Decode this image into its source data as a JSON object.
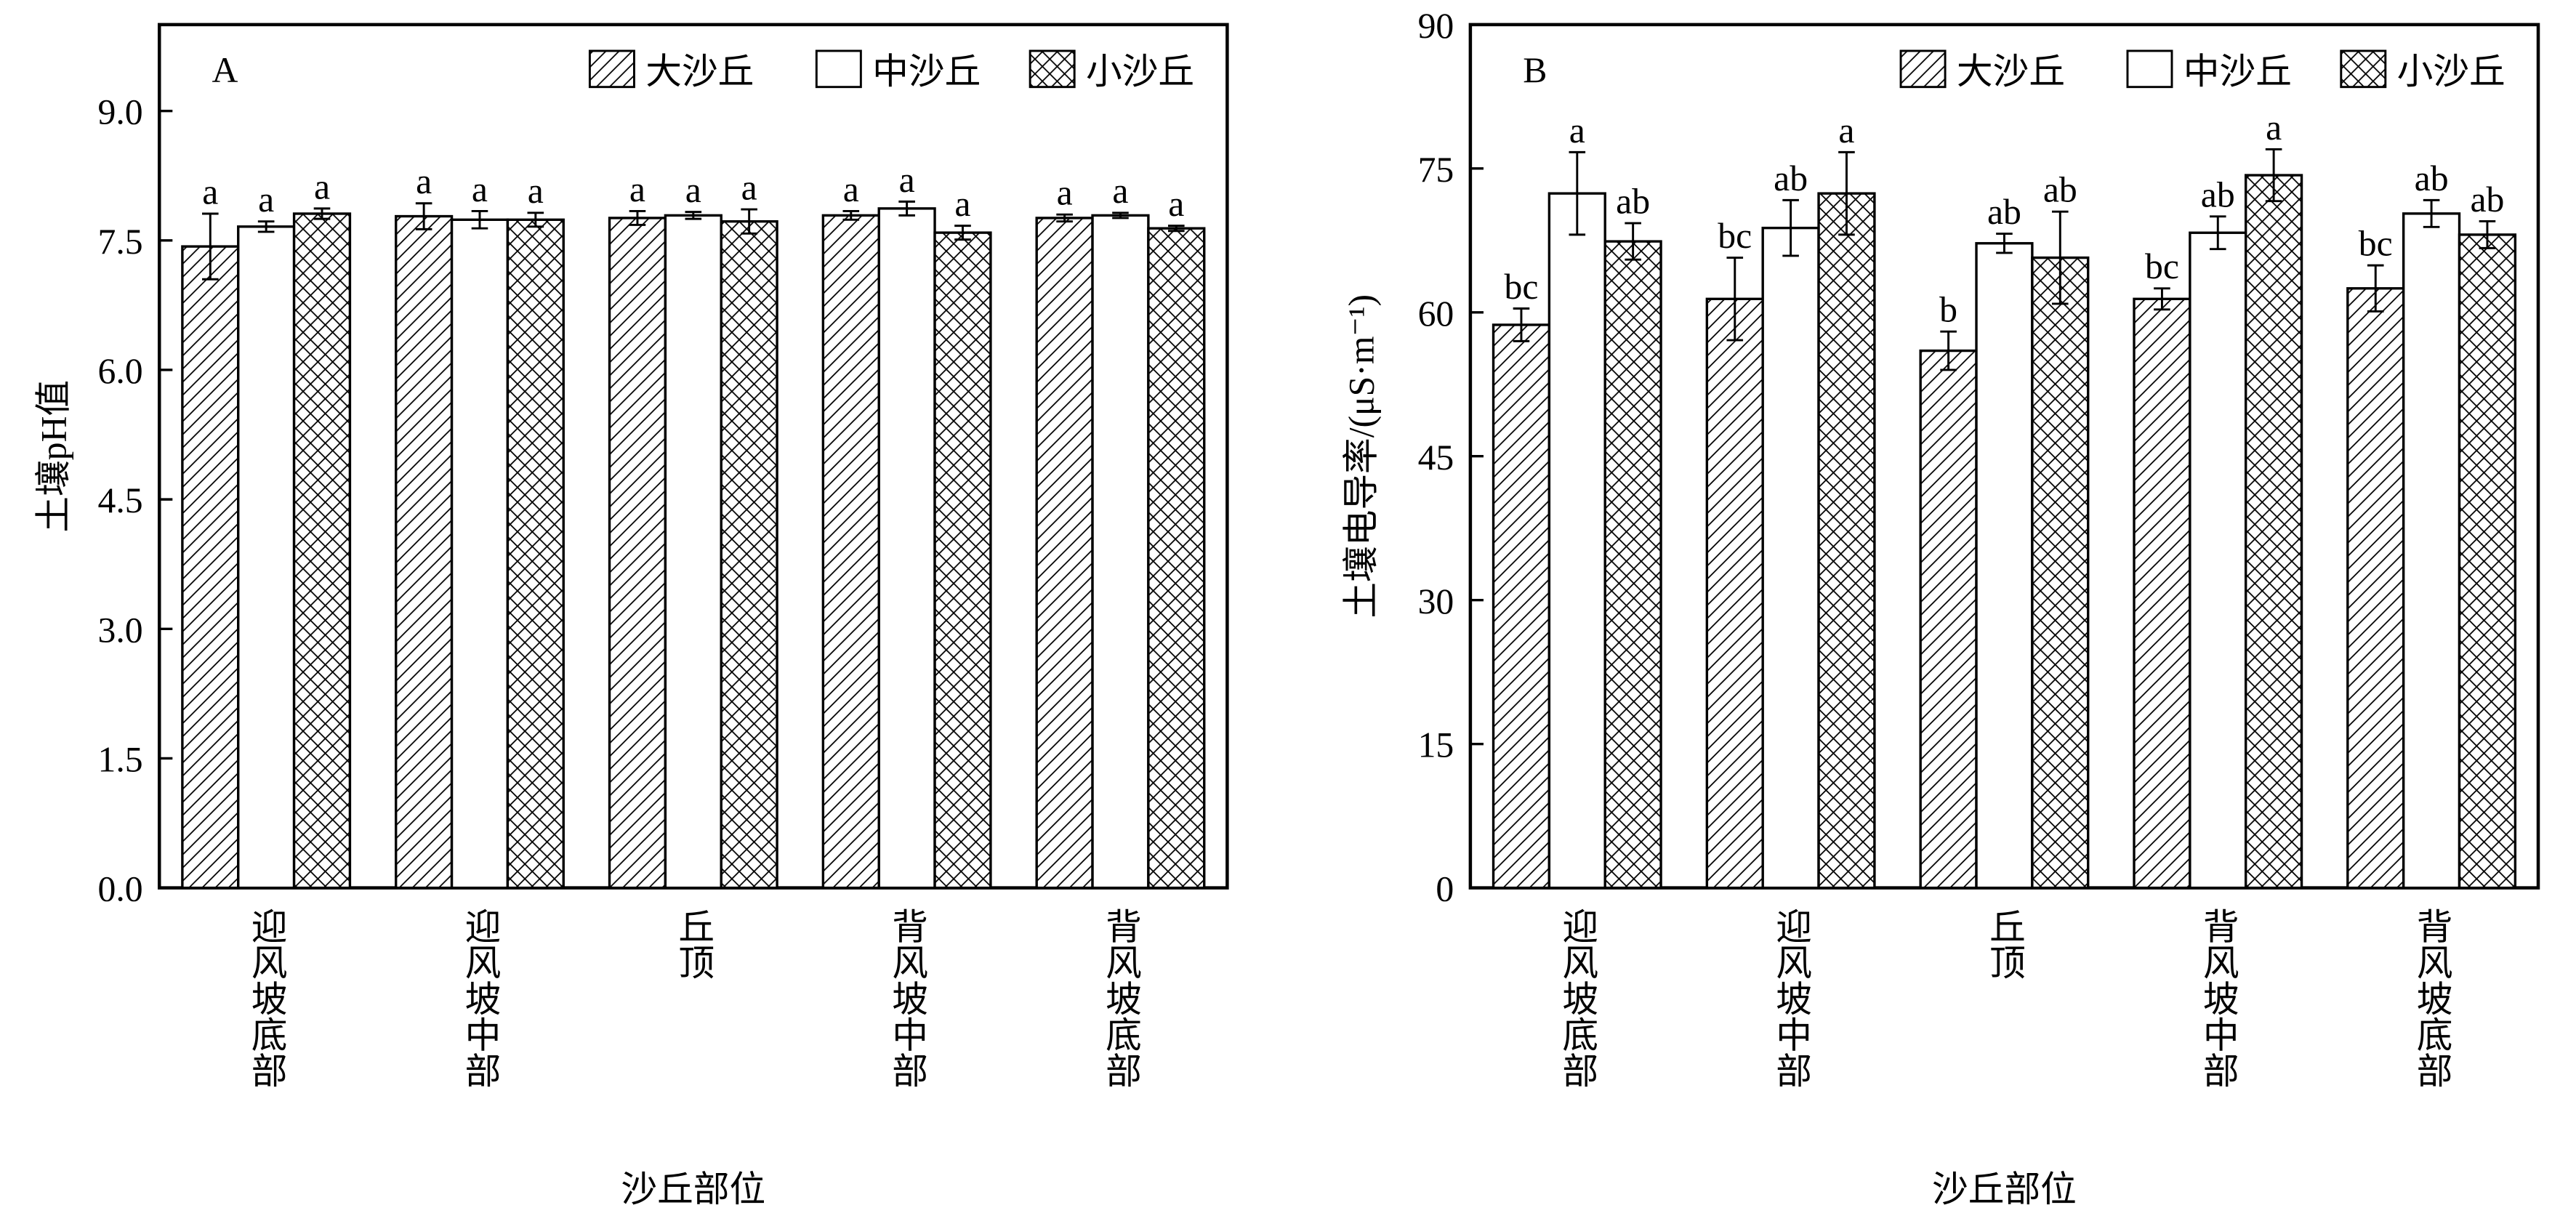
{
  "chart_data": [
    {
      "type": "bar",
      "panel": "A",
      "y_label": "土壤pH值",
      "x_label": "沙丘部位",
      "categories": [
        "迎风坡底部",
        "迎风坡中部",
        "丘顶",
        "背风坡中部",
        "背风坡底部"
      ],
      "ylim": [
        0,
        10
      ],
      "yticks": [
        {
          "value": 0,
          "label": "0.0"
        },
        {
          "value": 1.5,
          "label": "1.5"
        },
        {
          "value": 3,
          "label": "3.0"
        },
        {
          "value": 4.5,
          "label": "4.5"
        },
        {
          "value": 6,
          "label": "6.0"
        },
        {
          "value": 7.5,
          "label": "7.5"
        },
        {
          "value": 9,
          "label": "9.0"
        }
      ],
      "series": [
        {
          "name": "大沙丘",
          "pattern": "diagonal",
          "values": [
            7.43,
            7.78,
            7.76,
            7.79,
            7.76
          ],
          "errors": [
            0.38,
            0.15,
            0.08,
            0.05,
            0.04
          ],
          "letters": [
            "a",
            "a",
            "a",
            "a",
            "a"
          ]
        },
        {
          "name": "中沙丘",
          "pattern": "none",
          "values": [
            7.66,
            7.74,
            7.79,
            7.87,
            7.79
          ],
          "errors": [
            0.06,
            0.1,
            0.04,
            0.08,
            0.03
          ],
          "letters": [
            "a",
            "a",
            "a",
            "a",
            "a"
          ]
        },
        {
          "name": "小沙丘",
          "pattern": "cross",
          "values": [
            7.81,
            7.74,
            7.72,
            7.59,
            7.64
          ],
          "errors": [
            0.06,
            0.08,
            0.14,
            0.08,
            0.03
          ],
          "letters": [
            "a",
            "a",
            "a",
            "a",
            "a"
          ]
        }
      ]
    },
    {
      "type": "bar",
      "panel": "B",
      "y_label": "土壤电导率/(μS·m⁻¹)",
      "x_label": "沙丘部位",
      "categories": [
        "迎风坡底部",
        "迎风坡中部",
        "丘顶",
        "背风坡中部",
        "背风坡底部"
      ],
      "ylim": [
        0,
        90
      ],
      "yticks": [
        0,
        15,
        30,
        45,
        60,
        75,
        90
      ],
      "series": [
        {
          "name": "大沙丘",
          "pattern": "diagonal",
          "values": [
            58.7,
            61.4,
            56,
            61.4,
            62.5
          ],
          "errors": [
            1.7,
            4.3,
            2,
            1.1,
            2.4
          ],
          "letters": [
            "bc",
            "bc",
            "b",
            "bc",
            "bc"
          ]
        },
        {
          "name": "中沙丘",
          "pattern": "none",
          "values": [
            72.4,
            68.8,
            67.2,
            68.3,
            70.3
          ],
          "errors": [
            4.3,
            2.9,
            1,
            1.7,
            1.4
          ],
          "letters": [
            "a",
            "ab",
            "ab",
            "ab",
            "ab"
          ]
        },
        {
          "name": "小沙丘",
          "pattern": "cross",
          "values": [
            67.4,
            72.4,
            65.7,
            74.3,
            68.1
          ],
          "errors": [
            1.9,
            4.3,
            4.8,
            2.7,
            1.4
          ],
          "letters": [
            "ab",
            "a",
            "ab",
            "a",
            "ab"
          ]
        }
      ]
    }
  ]
}
